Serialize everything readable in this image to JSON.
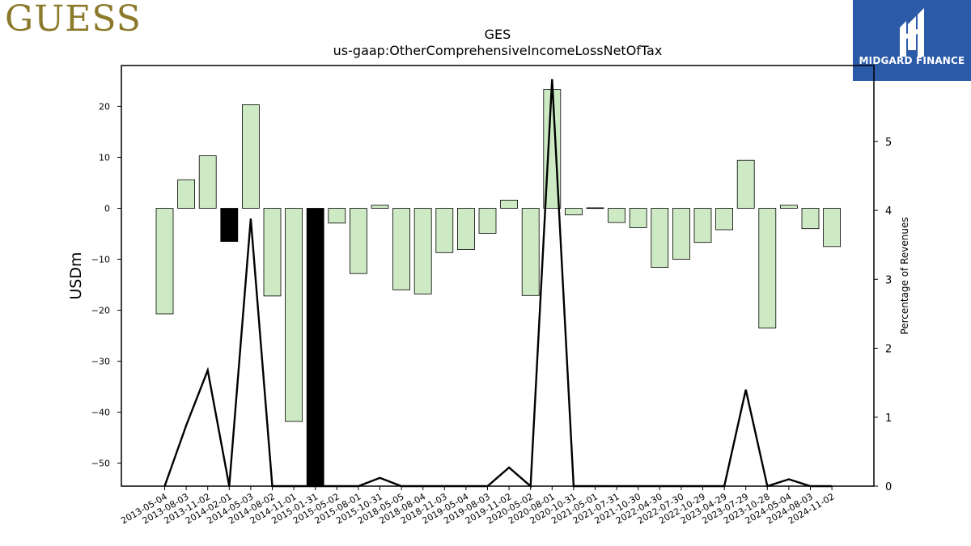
{
  "logo": {
    "text": "GUESS"
  },
  "brand": {
    "name": "MIDGARD FINANCE"
  },
  "chart_data": {
    "type": "bar",
    "title": "GES",
    "subtitle": "us-gaap:OtherComprehensiveIncomeLossNetOfTax",
    "ylabel": "USDm",
    "y2label": "Percentage of Revenues",
    "ylim": [
      -54.5,
      28.0
    ],
    "y2lim": [
      0,
      6.1
    ],
    "yticks": [
      -50,
      -40,
      -30,
      -20,
      -10,
      0,
      10,
      20
    ],
    "y2ticks": [
      0,
      1,
      2,
      3,
      4,
      5
    ],
    "categories": [
      "2013-05-04",
      "2013-08-03",
      "2013-11-02",
      "2014-02-01",
      "2014-05-03",
      "2014-08-02",
      "2014-11-01",
      "2015-01-31",
      "2015-05-02",
      "2015-08-01",
      "2015-10-31",
      "2018-05-05",
      "2018-08-04",
      "2018-11-03",
      "2019-05-04",
      "2019-08-03",
      "2019-11-02",
      "2020-05-02",
      "2020-08-01",
      "2020-10-31",
      "2021-05-01",
      "2021-07-31",
      "2021-10-30",
      "2022-04-30",
      "2022-07-30",
      "2022-10-29",
      "2023-04-29",
      "2023-07-29",
      "2023-10-28",
      "2024-05-04",
      "2024-08-03",
      "2024-11-02"
    ],
    "series": [
      {
        "kind": "bar",
        "values": [
          -20.7,
          5.6,
          10.3,
          -6.5,
          20.3,
          -17.2,
          -41.8,
          -54.5,
          -2.9,
          -12.8,
          0.6,
          -16.0,
          -16.8,
          -8.7,
          -8.1,
          -4.9,
          1.6,
          -17.1,
          23.3,
          -1.3,
          0.1,
          -2.8,
          -3.8,
          -11.6,
          -10.0,
          -6.7,
          -4.2,
          9.4,
          -23.5,
          0.6,
          -4.0,
          -7.5
        ],
        "colors": [
          "#cdeac4",
          "#cdeac4",
          "#cdeac4",
          "#000000",
          "#cdeac4",
          "#cdeac4",
          "#cdeac4",
          "#000000",
          "#cdeac4",
          "#cdeac4",
          "#cdeac4",
          "#cdeac4",
          "#cdeac4",
          "#cdeac4",
          "#cdeac4",
          "#cdeac4",
          "#cdeac4",
          "#cdeac4",
          "#cdeac4",
          "#cdeac4",
          "#cdeac4",
          "#cdeac4",
          "#cdeac4",
          "#cdeac4",
          "#cdeac4",
          "#cdeac4",
          "#cdeac4",
          "#cdeac4",
          "#cdeac4",
          "#cdeac4",
          "#cdeac4",
          "#cdeac4"
        ]
      },
      {
        "kind": "line",
        "axis": "right",
        "color": "#000000",
        "values": [
          0,
          0.88,
          1.68,
          0,
          3.88,
          0,
          0,
          0,
          0,
          0,
          0.12,
          0,
          0,
          0,
          0,
          0,
          0.27,
          0,
          5.9,
          0,
          0,
          0,
          0,
          0,
          0,
          0,
          0,
          1.4,
          0,
          0.1,
          0,
          0
        ]
      }
    ],
    "grid": false,
    "legend": "none"
  }
}
